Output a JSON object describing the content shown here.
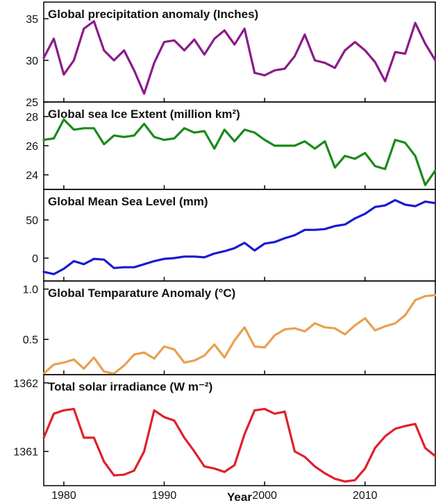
{
  "chart_data": [
    {
      "type": "line",
      "title": "Global precipitation anomaly (Inches)",
      "ylim": [
        25,
        37
      ],
      "yticks": [
        "25",
        "30",
        "35"
      ],
      "color": "#8b1a8b",
      "x": [
        1978,
        1979,
        1980,
        1981,
        1982,
        1983,
        1984,
        1985,
        1986,
        1987,
        1988,
        1989,
        1990,
        1991,
        1992,
        1993,
        1994,
        1995,
        1996,
        1997,
        1998,
        1999,
        2000,
        2001,
        2002,
        2003,
        2004,
        2005,
        2006,
        2007,
        2008,
        2009,
        2010,
        2011,
        2012,
        2013,
        2014,
        2015,
        2016,
        2017
      ],
      "y": [
        30.3,
        32.6,
        28.3,
        30.0,
        33.8,
        34.7,
        31.2,
        30.0,
        31.2,
        28.8,
        26.0,
        29.7,
        32.2,
        32.4,
        31.2,
        32.5,
        30.7,
        32.6,
        33.6,
        31.9,
        33.8,
        28.5,
        28.2,
        28.8,
        29.0,
        30.5,
        33.1,
        30.0,
        29.7,
        29.1,
        31.2,
        32.2,
        31.2,
        29.8,
        27.5,
        31.0,
        30.8,
        34.5,
        32.0,
        30.0
      ]
    },
    {
      "type": "line",
      "title": "Global sea Ice Extent (million km²)",
      "ylim": [
        23,
        29
      ],
      "yticks": [
        "24",
        "26",
        "28"
      ],
      "color": "#1a8a1a",
      "x": [
        1978,
        1979,
        1980,
        1981,
        1982,
        1983,
        1984,
        1985,
        1986,
        1987,
        1988,
        1989,
        1990,
        1991,
        1992,
        1993,
        1994,
        1995,
        1996,
        1997,
        1998,
        1999,
        2000,
        2001,
        2002,
        2003,
        2004,
        2005,
        2006,
        2007,
        2008,
        2009,
        2010,
        2011,
        2012,
        2013,
        2014,
        2015,
        2016,
        2017
      ],
      "y": [
        26.4,
        26.5,
        27.8,
        27.1,
        27.2,
        27.2,
        26.1,
        26.7,
        26.6,
        26.7,
        27.5,
        26.6,
        26.4,
        26.5,
        27.2,
        26.9,
        27.0,
        25.8,
        27.1,
        26.3,
        27.1,
        26.9,
        26.4,
        26.0,
        26.0,
        26.0,
        26.3,
        25.8,
        26.3,
        24.5,
        25.3,
        25.1,
        25.5,
        24.6,
        24.4,
        26.4,
        26.2,
        25.3,
        23.3,
        24.3
      ]
    },
    {
      "type": "line",
      "title": "Global Mean Sea Level (mm)",
      "ylim": [
        -30,
        90
      ],
      "yticks": [
        "0",
        "50"
      ],
      "color": "#1a1ad4",
      "x": [
        1978,
        1979,
        1980,
        1981,
        1982,
        1983,
        1984,
        1985,
        1986,
        1987,
        1988,
        1989,
        1990,
        1991,
        1992,
        1993,
        1994,
        1995,
        1996,
        1997,
        1998,
        1999,
        2000,
        2001,
        2002,
        2003,
        2004,
        2005,
        2006,
        2007,
        2008,
        2009,
        2010,
        2011,
        2012,
        2013,
        2014,
        2015,
        2016,
        2017
      ],
      "y": [
        -18,
        -21,
        -14,
        -4,
        -8,
        -1,
        -2,
        -13,
        -12,
        -12,
        -8,
        -4,
        -1,
        0,
        2,
        2,
        1,
        6,
        9,
        13,
        20,
        10,
        19,
        21,
        26,
        30,
        37,
        37,
        38,
        42,
        44,
        52,
        58,
        67,
        69,
        76,
        70,
        68,
        74,
        72
      ]
    },
    {
      "type": "line",
      "title": "Global Temparature Anomaly (°C)",
      "ylim": [
        0.15,
        1.08
      ],
      "yticks": [
        "0.5",
        "1.0"
      ],
      "color": "#e8a050",
      "x": [
        1978,
        1979,
        1980,
        1981,
        1982,
        1983,
        1984,
        1985,
        1986,
        1987,
        1988,
        1989,
        1990,
        1991,
        1992,
        1993,
        1994,
        1995,
        1996,
        1997,
        1998,
        1999,
        2000,
        2001,
        2002,
        2003,
        2004,
        2005,
        2006,
        2007,
        2008,
        2009,
        2010,
        2011,
        2012,
        2013,
        2014,
        2015,
        2016,
        2017
      ],
      "y": [
        0.16,
        0.25,
        0.27,
        0.3,
        0.21,
        0.32,
        0.18,
        0.16,
        0.24,
        0.35,
        0.37,
        0.31,
        0.43,
        0.4,
        0.27,
        0.29,
        0.34,
        0.45,
        0.32,
        0.49,
        0.62,
        0.43,
        0.42,
        0.54,
        0.6,
        0.61,
        0.58,
        0.66,
        0.62,
        0.61,
        0.55,
        0.64,
        0.71,
        0.59,
        0.63,
        0.66,
        0.74,
        0.89,
        0.93,
        0.94
      ]
    },
    {
      "type": "line",
      "title": "Total solar irradiance (W m⁻²)",
      "ylim": [
        1360.5,
        1362.12
      ],
      "yticks": [
        "1361",
        "1362"
      ],
      "color": "#e0202a",
      "x": [
        1978,
        1979,
        1980,
        1981,
        1982,
        1983,
        1984,
        1985,
        1986,
        1987,
        1988,
        1989,
        1990,
        1991,
        1992,
        1993,
        1994,
        1995,
        1996,
        1997,
        1998,
        1999,
        2000,
        2001,
        2002,
        2003,
        2004,
        2005,
        2006,
        2007,
        2008,
        2009,
        2010,
        2011,
        2012,
        2013,
        2014,
        2015,
        2016,
        2017
      ],
      "y": [
        1361.2,
        1361.55,
        1361.6,
        1361.62,
        1361.2,
        1361.2,
        1360.85,
        1360.65,
        1360.66,
        1360.72,
        1361.0,
        1361.6,
        1361.5,
        1361.45,
        1361.2,
        1361.0,
        1360.78,
        1360.75,
        1360.7,
        1360.8,
        1361.25,
        1361.6,
        1361.62,
        1361.55,
        1361.58,
        1361.0,
        1360.92,
        1360.78,
        1360.68,
        1360.6,
        1360.56,
        1360.58,
        1360.75,
        1361.05,
        1361.22,
        1361.33,
        1361.37,
        1361.4,
        1361.05,
        1360.93
      ]
    }
  ],
  "xaxis": {
    "label": "Year",
    "xlim": [
      1978,
      2017
    ],
    "ticks": [
      1980,
      1990,
      2000,
      2010
    ],
    "tick_labels": [
      "1980",
      "1990",
      "2000",
      "2010"
    ]
  }
}
